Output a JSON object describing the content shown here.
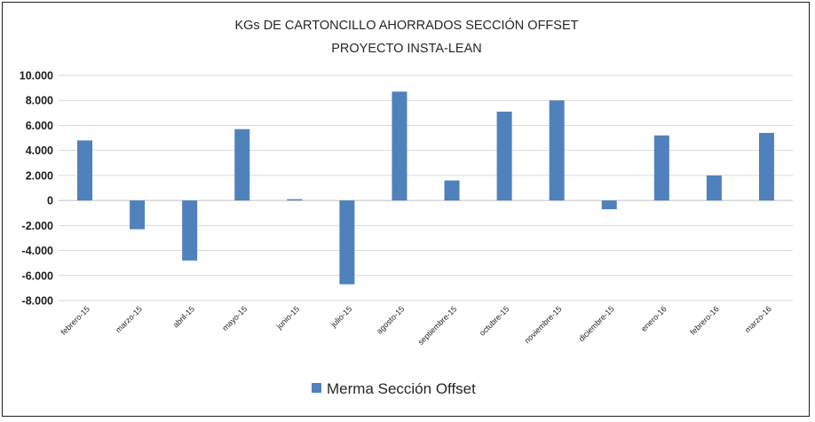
{
  "chart_data": {
    "type": "bar",
    "title_lines": [
      "KGs DE CARTONCILLO AHORRADOS SECCIÓN OFFSET",
      "PROYECTO INSTA-LEAN"
    ],
    "categories": [
      "febrero-15",
      "marzo-15",
      "abril-15",
      "mayo-15",
      "junio-15",
      "julio-15",
      "agosto-15",
      "septiembre-15",
      "octubre-15",
      "noviembre-15",
      "diciembre-15",
      "enero-16",
      "febrero-16",
      "marzo-16"
    ],
    "series": [
      {
        "name": "Merma Sección Offset",
        "color": "#4f81bd",
        "values": [
          4800,
          -2300,
          -4800,
          5700,
          100,
          -6700,
          8700,
          1600,
          7100,
          8000,
          -700,
          5200,
          2000,
          5400
        ]
      }
    ],
    "ylim": [
      -8000,
      10000
    ],
    "yticks": [
      10000,
      8000,
      6000,
      4000,
      2000,
      0,
      -2000,
      -4000,
      -6000,
      -8000
    ],
    "ytick_labels": [
      "10.000",
      "8.000",
      "6.000",
      "4.000",
      "2.000",
      "0",
      "-2.000",
      "-4.000",
      "-6.000",
      "-8.000"
    ],
    "grid": true,
    "legend_position": "bottom"
  }
}
